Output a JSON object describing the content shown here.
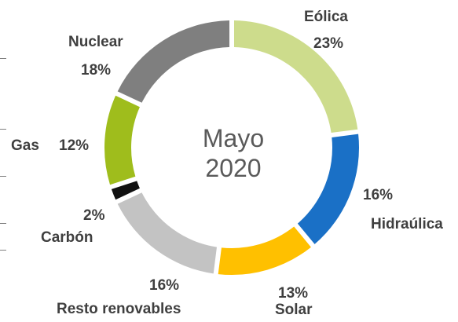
{
  "chart_data": {
    "type": "pie",
    "title": "Mayo 2020",
    "title_lines": [
      "Mayo",
      "2020"
    ],
    "donut": true,
    "slices": [
      {
        "name": "Eólica",
        "value": 23,
        "pct": "23%",
        "color": "#cddc8c"
      },
      {
        "name": "Hidraúlica",
        "value": 16,
        "pct": "16%",
        "color": "#1a70c6"
      },
      {
        "name": "Solar",
        "value": 13,
        "pct": "13%",
        "color": "#ffc000"
      },
      {
        "name": "Resto renovables",
        "value": 16,
        "pct": "16%",
        "color": "#c3c3c3"
      },
      {
        "name": "Carbón",
        "value": 2,
        "pct": "2%",
        "color": "#111111"
      },
      {
        "name": "Gas",
        "value": 12,
        "pct": "12%",
        "color": "#9fbd1c"
      },
      {
        "name": "Nuclear",
        "value": 18,
        "pct": "18%",
        "color": "#7f7f7f"
      }
    ]
  }
}
